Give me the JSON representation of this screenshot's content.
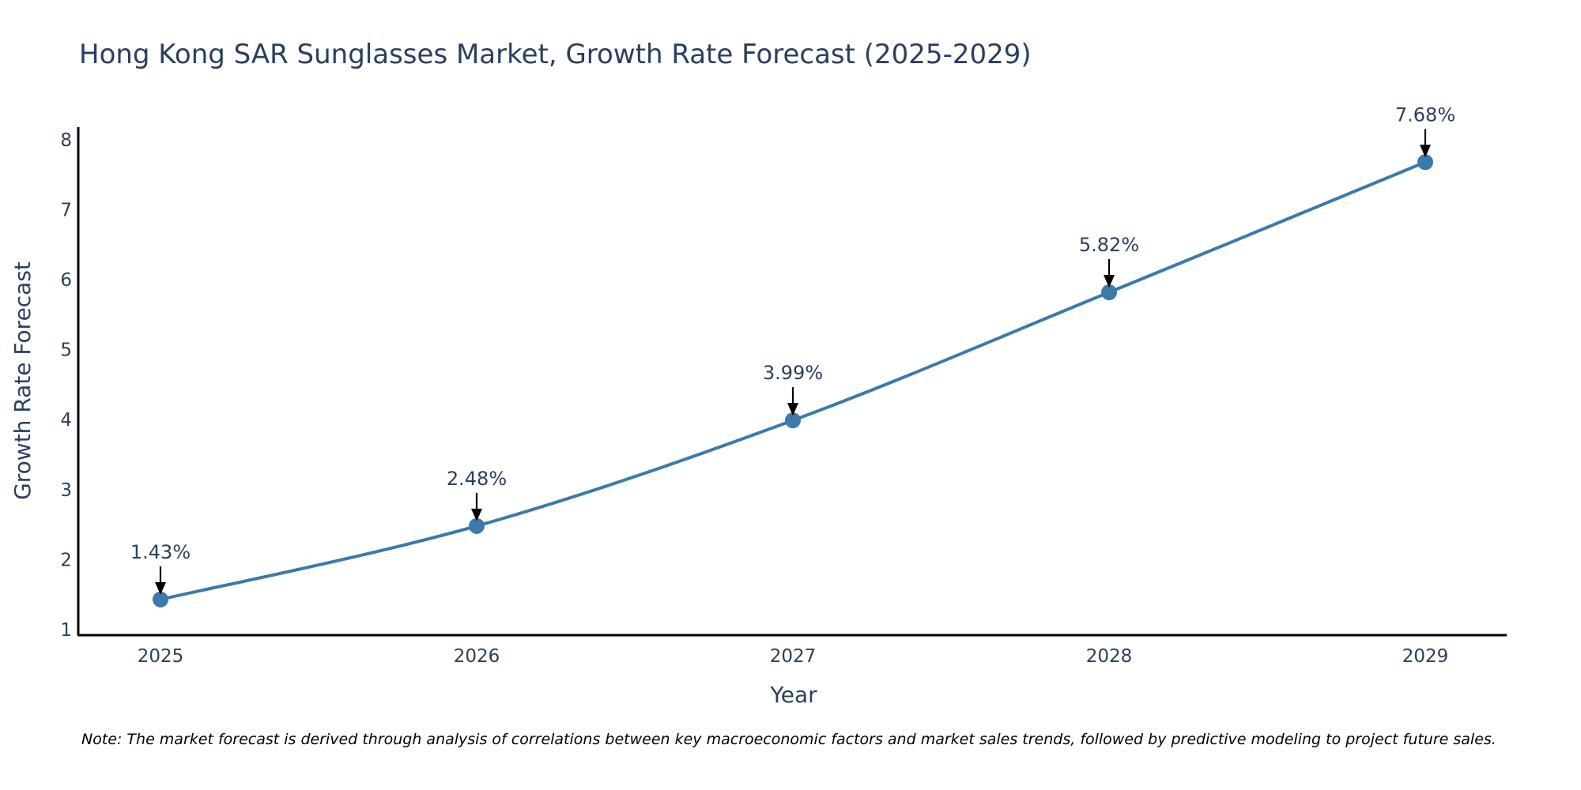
{
  "colors": {
    "line": "#3b7aaa",
    "marker": "#3b7aaa",
    "axis": "#000000",
    "text": "#2a3f5f",
    "arrow": "#000000"
  },
  "chart_data": {
    "type": "line",
    "title": "Hong Kong SAR Sunglasses Market, Growth Rate Forecast (2025-2029)",
    "xlabel": "Year",
    "ylabel": "Growth Rate Forecast",
    "x": [
      "2025",
      "2026",
      "2027",
      "2028",
      "2029"
    ],
    "values": [
      1.43,
      2.48,
      3.99,
      5.82,
      7.68
    ],
    "data_labels": [
      "1.43%",
      "2.48%",
      "3.99%",
      "5.82%",
      "7.68%"
    ],
    "yticks": [
      "1",
      "2",
      "3",
      "4",
      "5",
      "6",
      "7",
      "8"
    ],
    "ylim": [
      0.92,
      8.18
    ],
    "grid": false,
    "legend": "none"
  },
  "note": "Note: The market forecast is derived through analysis of correlations between key macroeconomic factors and market sales trends, followed by predictive modeling to project future sales."
}
